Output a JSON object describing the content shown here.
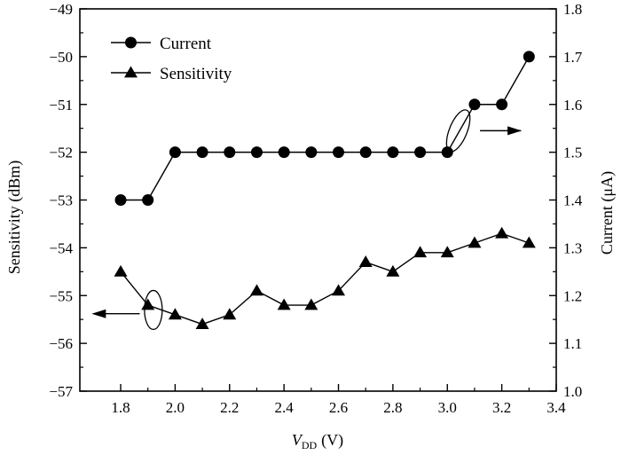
{
  "chart_data": {
    "type": "line",
    "title": "",
    "x": [
      1.8,
      1.9,
      2.0,
      2.1,
      2.2,
      2.3,
      2.4,
      2.5,
      2.6,
      2.7,
      2.8,
      2.9,
      3.0,
      3.1,
      3.2,
      3.3
    ],
    "xlabel": "V",
    "xlabel_sub": "DD",
    "xlabel_unit": "(V)",
    "xlim": [
      1.65,
      3.4
    ],
    "xticks": [
      1.8,
      2.0,
      2.2,
      2.4,
      2.6,
      2.8,
      3.0,
      3.2,
      3.4
    ],
    "xtick_labels": [
      "1.8",
      "2.0",
      "2.2",
      "2.4",
      "2.6",
      "2.8",
      "3.0",
      "3.2",
      "3.4"
    ],
    "ylabel_left": "Sensitivity (dBm)",
    "ylim_left": [
      -57,
      -49
    ],
    "yticks_left_labels": [
      "−57",
      "−56",
      "−55",
      "−54",
      "−53",
      "−52",
      "−51",
      "−50",
      "−49"
    ],
    "ylabel_right": "Current (μA)",
    "ylim_right": [
      1.0,
      1.8
    ],
    "yticks_right_labels": [
      "1.0",
      "1.1",
      "1.2",
      "1.3",
      "1.4",
      "1.5",
      "1.6",
      "1.7",
      "1.8"
    ],
    "grid": false,
    "legend_position": "top-left",
    "series": [
      {
        "name": "Current",
        "axis": "right",
        "marker": "circle",
        "values": [
          1.4,
          1.4,
          1.5,
          1.5,
          1.5,
          1.5,
          1.5,
          1.5,
          1.5,
          1.5,
          1.5,
          1.5,
          1.5,
          1.6,
          1.6,
          1.7
        ]
      },
      {
        "name": "Sensitivity",
        "axis": "left",
        "marker": "triangle",
        "values": [
          -54.5,
          -55.2,
          -55.4,
          -55.6,
          -55.4,
          -54.9,
          -55.2,
          -55.2,
          -54.9,
          -54.3,
          -54.5,
          -54.1,
          -54.1,
          -53.9,
          -53.7,
          -53.9
        ]
      }
    ]
  }
}
